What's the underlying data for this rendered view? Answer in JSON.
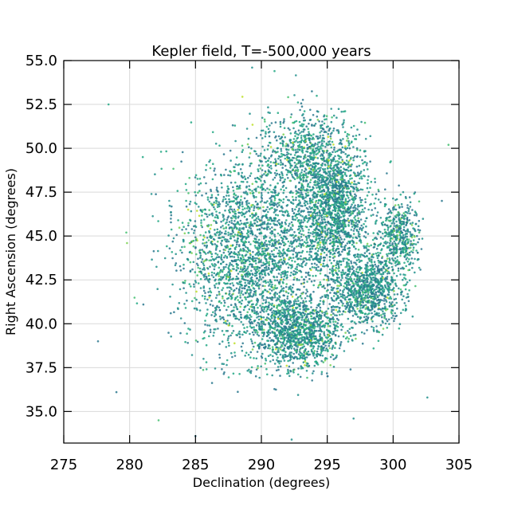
{
  "chart_data": {
    "type": "scatter",
    "title": "Kepler field, T=-500,000 years",
    "xlabel": "Declination (degrees)",
    "ylabel": "Right Ascension (degrees)",
    "xlim": [
      275,
      305
    ],
    "ylim": [
      33.2,
      55.0
    ],
    "xticks": [
      275,
      280,
      285,
      290,
      295,
      300,
      305
    ],
    "xtick_labels": [
      "275",
      "280",
      "285",
      "290",
      "295",
      "300",
      "305"
    ],
    "yticks": [
      35.0,
      37.5,
      40.0,
      42.5,
      45.0,
      47.5,
      50.0,
      52.5,
      55.0
    ],
    "ytick_labels": [
      "35.0",
      "37.5",
      "40.0",
      "42.5",
      "45.0",
      "47.5",
      "50.0",
      "52.5",
      "55.0"
    ],
    "grid": true,
    "legend": "none",
    "colormap": [
      "#2a788e",
      "#21918c",
      "#22a884",
      "#44bf70",
      "#7ad151",
      "#bddf26"
    ],
    "clusters": [
      {
        "center": [
          289.5,
          44.0
        ],
        "spread": [
          4.5,
          4.6
        ],
        "count": 2600
      },
      {
        "center": [
          295.5,
          46.5
        ],
        "spread": [
          2.2,
          2.8
        ],
        "count": 1400
      },
      {
        "center": [
          298.0,
          42.0
        ],
        "spread": [
          2.2,
          1.8
        ],
        "count": 1000
      },
      {
        "center": [
          293.0,
          39.5
        ],
        "spread": [
          2.6,
          1.6
        ],
        "count": 1100
      },
      {
        "center": [
          300.5,
          45.0
        ],
        "spread": [
          1.2,
          1.6
        ],
        "count": 450
      },
      {
        "center": [
          293.5,
          49.5
        ],
        "spread": [
          3.0,
          2.0
        ],
        "count": 700
      }
    ],
    "outliers": [
      [
        278.4,
        52.5
      ],
      [
        277.6,
        39.0
      ],
      [
        279.0,
        36.1
      ],
      [
        282.2,
        34.5
      ],
      [
        285.0,
        33.6
      ],
      [
        292.3,
        33.4
      ],
      [
        297.0,
        34.6
      ],
      [
        302.6,
        35.8
      ],
      [
        304.2,
        50.2
      ],
      [
        303.7,
        47.0
      ],
      [
        289.3,
        54.6
      ],
      [
        291.0,
        54.4
      ],
      [
        279.8,
        44.6
      ],
      [
        281.0,
        49.5
      ]
    ]
  }
}
